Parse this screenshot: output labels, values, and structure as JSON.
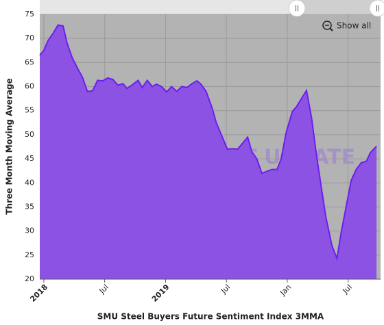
{
  "chart_data": {
    "type": "area",
    "x_label": "SMU Steel Buyers Future Sentiment Index 3MMA",
    "y_label": "Three Month Moving Average",
    "watermark": "STEEL MARKET UPDATE",
    "button": "Show all",
    "color": "#8c52e3",
    "line_color": "#6a1ff0",
    "plot_background": "#b3b3b3",
    "x": [
      -0.4,
      0,
      0.4,
      0.9,
      1.4,
      1.9,
      2.3,
      2.8,
      3.4,
      3.8,
      4.3,
      4.8,
      5.3,
      5.8,
      6.3,
      6.8,
      7.3,
      7.8,
      8.2,
      8.8,
      9.3,
      9.7,
      10.2,
      10.7,
      11.1,
      11.6,
      12.1,
      12.6,
      13.1,
      13.6,
      14.1,
      14.6,
      15.1,
      15.5,
      16,
      16.6,
      17,
      17.5,
      18.1,
      18.6,
      19.1,
      19.5,
      20.1,
      20.5,
      21,
      21.5,
      22,
      22.5,
      23,
      23.4,
      23.9,
      24.5,
      24.9,
      25.4,
      25.9,
      26.4,
      26.9,
      27.4,
      27.8,
      28.4,
      28.9,
      29.3,
      29.8,
      30.3,
      30.8,
      31.3,
      31.8,
      32.2,
      32.8
    ],
    "values": [
      66.5,
      67.5,
      69.5,
      71,
      72.8,
      72.6,
      69,
      66,
      63.5,
      62,
      59,
      59.1,
      61.3,
      61.2,
      61.8,
      61.5,
      60.3,
      60.6,
      59.6,
      60.5,
      61.3,
      59.8,
      61.3,
      60,
      60.5,
      60,
      58.9,
      60,
      59,
      60,
      59.8,
      60.6,
      61.2,
      60.5,
      59,
      55.5,
      52.5,
      50,
      47,
      47.1,
      47,
      48,
      49.5,
      46.5,
      45,
      42,
      42.4,
      42.8,
      42.8,
      45,
      50.5,
      54.8,
      55.8,
      57.5,
      59.2,
      53.5,
      45.5,
      38.5,
      33,
      27,
      24.3,
      29.5,
      35,
      40.5,
      42.8,
      44.2,
      44.5,
      46.3,
      47.6
    ],
    "xlim": [
      -0.4,
      33.2
    ],
    "xticks": [
      {
        "value": 0,
        "label": "2018"
      },
      {
        "value": 6,
        "label": "Jul"
      },
      {
        "value": 12,
        "label": "2019"
      },
      {
        "value": 18,
        "label": "Jul"
      },
      {
        "value": 24,
        "label": "Jan"
      },
      {
        "value": 30,
        "label": "Jul"
      }
    ],
    "ylim": [
      20,
      75
    ],
    "yticks": [
      20,
      25,
      30,
      35,
      40,
      45,
      50,
      55,
      60,
      65,
      70,
      75
    ],
    "grid": true
  }
}
